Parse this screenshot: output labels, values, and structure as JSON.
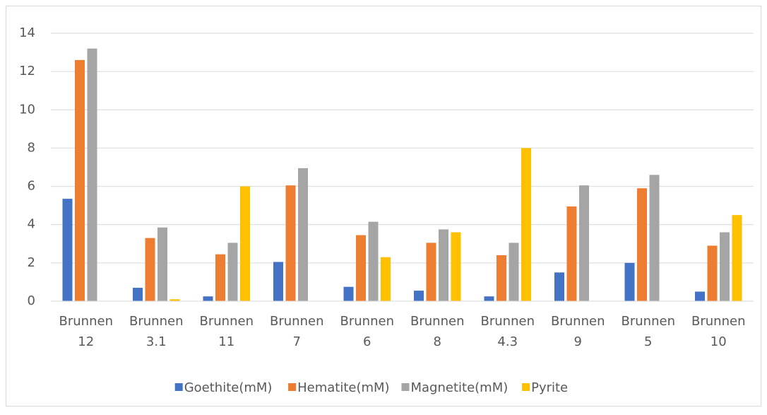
{
  "chart_data": {
    "type": "bar",
    "categories": [
      "Brunnen 12",
      "Brunnen 3.1",
      "Brunnen 11",
      "Brunnen 7",
      "Brunnen 6",
      "Brunnen 8",
      "Brunnen 4.3",
      "Brunnen 9",
      "Brunnen 5",
      "Brunnen 10"
    ],
    "series": [
      {
        "name": "Goethite(mM)",
        "color": "#4472c4",
        "values": [
          5.35,
          0.7,
          0.25,
          2.05,
          0.75,
          0.55,
          0.25,
          1.5,
          2.0,
          0.5
        ]
      },
      {
        "name": "Hematite(mM)",
        "color": "#ed7d31",
        "values": [
          12.6,
          3.3,
          2.45,
          6.05,
          3.45,
          3.05,
          2.4,
          4.95,
          5.9,
          2.9
        ]
      },
      {
        "name": "Magnetite(mM)",
        "color": "#a5a5a5",
        "values": [
          13.2,
          3.85,
          3.05,
          6.95,
          4.15,
          3.75,
          3.05,
          6.05,
          6.6,
          3.6
        ]
      },
      {
        "name": "Pyrite",
        "color": "#ffc000",
        "values": [
          0,
          0.1,
          6.0,
          0,
          2.3,
          3.6,
          8.0,
          0,
          0,
          4.5
        ]
      }
    ],
    "ylim": [
      0,
      14
    ],
    "yticks": [
      0,
      2,
      4,
      6,
      8,
      10,
      12,
      14
    ],
    "grid": true,
    "legend": "bottom"
  }
}
